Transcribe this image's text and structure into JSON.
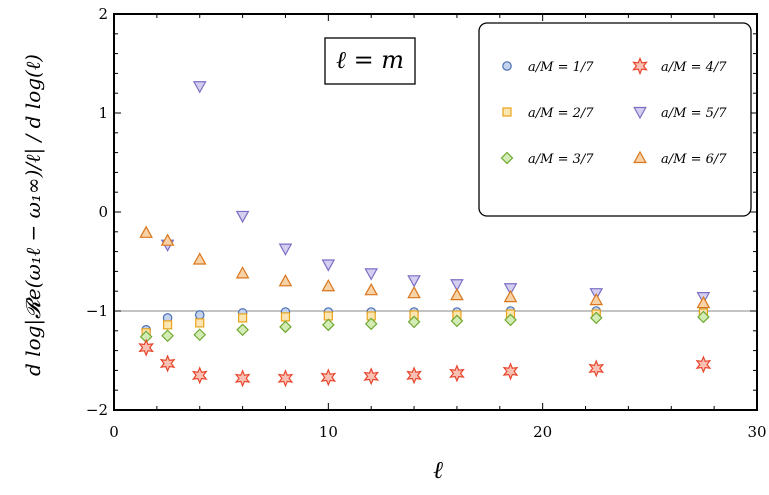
{
  "chart_data": {
    "type": "scatter",
    "title": "",
    "annotation": "ℓ = m",
    "xlabel": "ℓ",
    "ylabel": "d log|𝓡e(ω₁ℓ − ω₁∞)/ℓ| / d log(ℓ)",
    "xlim": [
      0,
      30
    ],
    "ylim": [
      -2,
      2
    ],
    "x_ticks": [
      "0",
      "10",
      "20",
      "30"
    ],
    "y_ticks": [
      "−2",
      "−1",
      "0",
      "1",
      "2"
    ],
    "reference_line": -1,
    "legend_position": "top-right",
    "series": [
      {
        "name": "a/M = 1/7",
        "marker": "circle",
        "color": "#4a6fb5",
        "fill": "#c6d3ec",
        "x": [
          1.5,
          2.5,
          4,
          6,
          8,
          10,
          12,
          14,
          16,
          18.5,
          22.5,
          27.5
        ],
        "y": [
          -1.19,
          -1.07,
          -1.04,
          -1.02,
          -1.01,
          -1.01,
          -1.01,
          -1.01,
          -1.01,
          -1.0,
          -1.0,
          -1.0
        ]
      },
      {
        "name": "a/M = 2/7",
        "marker": "square",
        "color": "#e8a317",
        "fill": "#fbe5b3",
        "x": [
          1.5,
          2.5,
          4,
          6,
          8,
          10,
          12,
          14,
          16,
          18.5,
          22.5,
          27.5
        ],
        "y": [
          -1.22,
          -1.14,
          -1.12,
          -1.07,
          -1.06,
          -1.05,
          -1.05,
          -1.04,
          -1.04,
          -1.03,
          -1.03,
          -1.02
        ]
      },
      {
        "name": "a/M = 3/7",
        "marker": "diamond",
        "color": "#6fa832",
        "fill": "#d3ecb5",
        "x": [
          1.5,
          2.5,
          4,
          6,
          8,
          10,
          12,
          14,
          16,
          18.5,
          22.5,
          27.5
        ],
        "y": [
          -1.26,
          -1.25,
          -1.24,
          -1.19,
          -1.16,
          -1.14,
          -1.13,
          -1.11,
          -1.1,
          -1.09,
          -1.07,
          -1.06
        ]
      },
      {
        "name": "a/M = 4/7",
        "marker": "star",
        "color": "#e8452c",
        "fill": "#f9c1b4",
        "x": [
          1.5,
          2.5,
          4,
          6,
          8,
          10,
          12,
          14,
          16,
          18.5,
          22.5,
          27.5
        ],
        "y": [
          -1.37,
          -1.53,
          -1.65,
          -1.68,
          -1.68,
          -1.67,
          -1.66,
          -1.65,
          -1.63,
          -1.61,
          -1.58,
          -1.54
        ]
      },
      {
        "name": "a/M = 5/7",
        "marker": "triangle-down",
        "color": "#7a6fc4",
        "fill": "#d4cff0",
        "x": [
          2.5,
          4,
          6,
          8,
          10,
          12,
          14,
          16,
          18.5,
          22.5,
          27.5
        ],
        "y": [
          -0.33,
          1.27,
          -0.04,
          -0.37,
          -0.53,
          -0.62,
          -0.69,
          -0.73,
          -0.77,
          -0.82,
          -0.86
        ]
      },
      {
        "name": "a/M = 6/7",
        "marker": "triangle-up",
        "color": "#d9761c",
        "fill": "#f7d2a6",
        "x": [
          1.5,
          2.5,
          4,
          6,
          8,
          10,
          12,
          14,
          16,
          18.5,
          22.5,
          27.5
        ],
        "y": [
          -0.21,
          -0.29,
          -0.48,
          -0.62,
          -0.7,
          -0.75,
          -0.79,
          -0.82,
          -0.84,
          -0.86,
          -0.89,
          -0.92
        ]
      }
    ]
  }
}
